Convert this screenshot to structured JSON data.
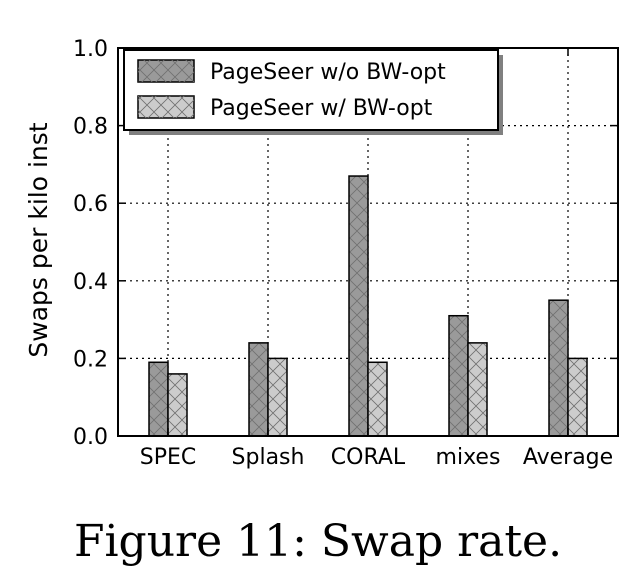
{
  "caption": "Figure 11: Swap rate.",
  "chart_data": {
    "type": "bar",
    "title": "",
    "xlabel": "",
    "ylabel": "Swaps per kilo inst",
    "categories": [
      "SPEC",
      "Splash",
      "CORAL",
      "mixes",
      "Average"
    ],
    "series": [
      {
        "name": "PageSeer w/o BW-opt",
        "values": [
          0.19,
          0.24,
          0.67,
          0.31,
          0.35
        ],
        "color": "#9a9a9a"
      },
      {
        "name": "PageSeer w/ BW-opt",
        "values": [
          0.16,
          0.2,
          0.19,
          0.24,
          0.2
        ],
        "color": "#cccccc"
      }
    ],
    "ylim": [
      0,
      1.0
    ],
    "yticks": [
      "0.0",
      "0.2",
      "0.4",
      "0.6",
      "0.8",
      "1.0"
    ],
    "grid": true,
    "legend_position": "top-left"
  }
}
